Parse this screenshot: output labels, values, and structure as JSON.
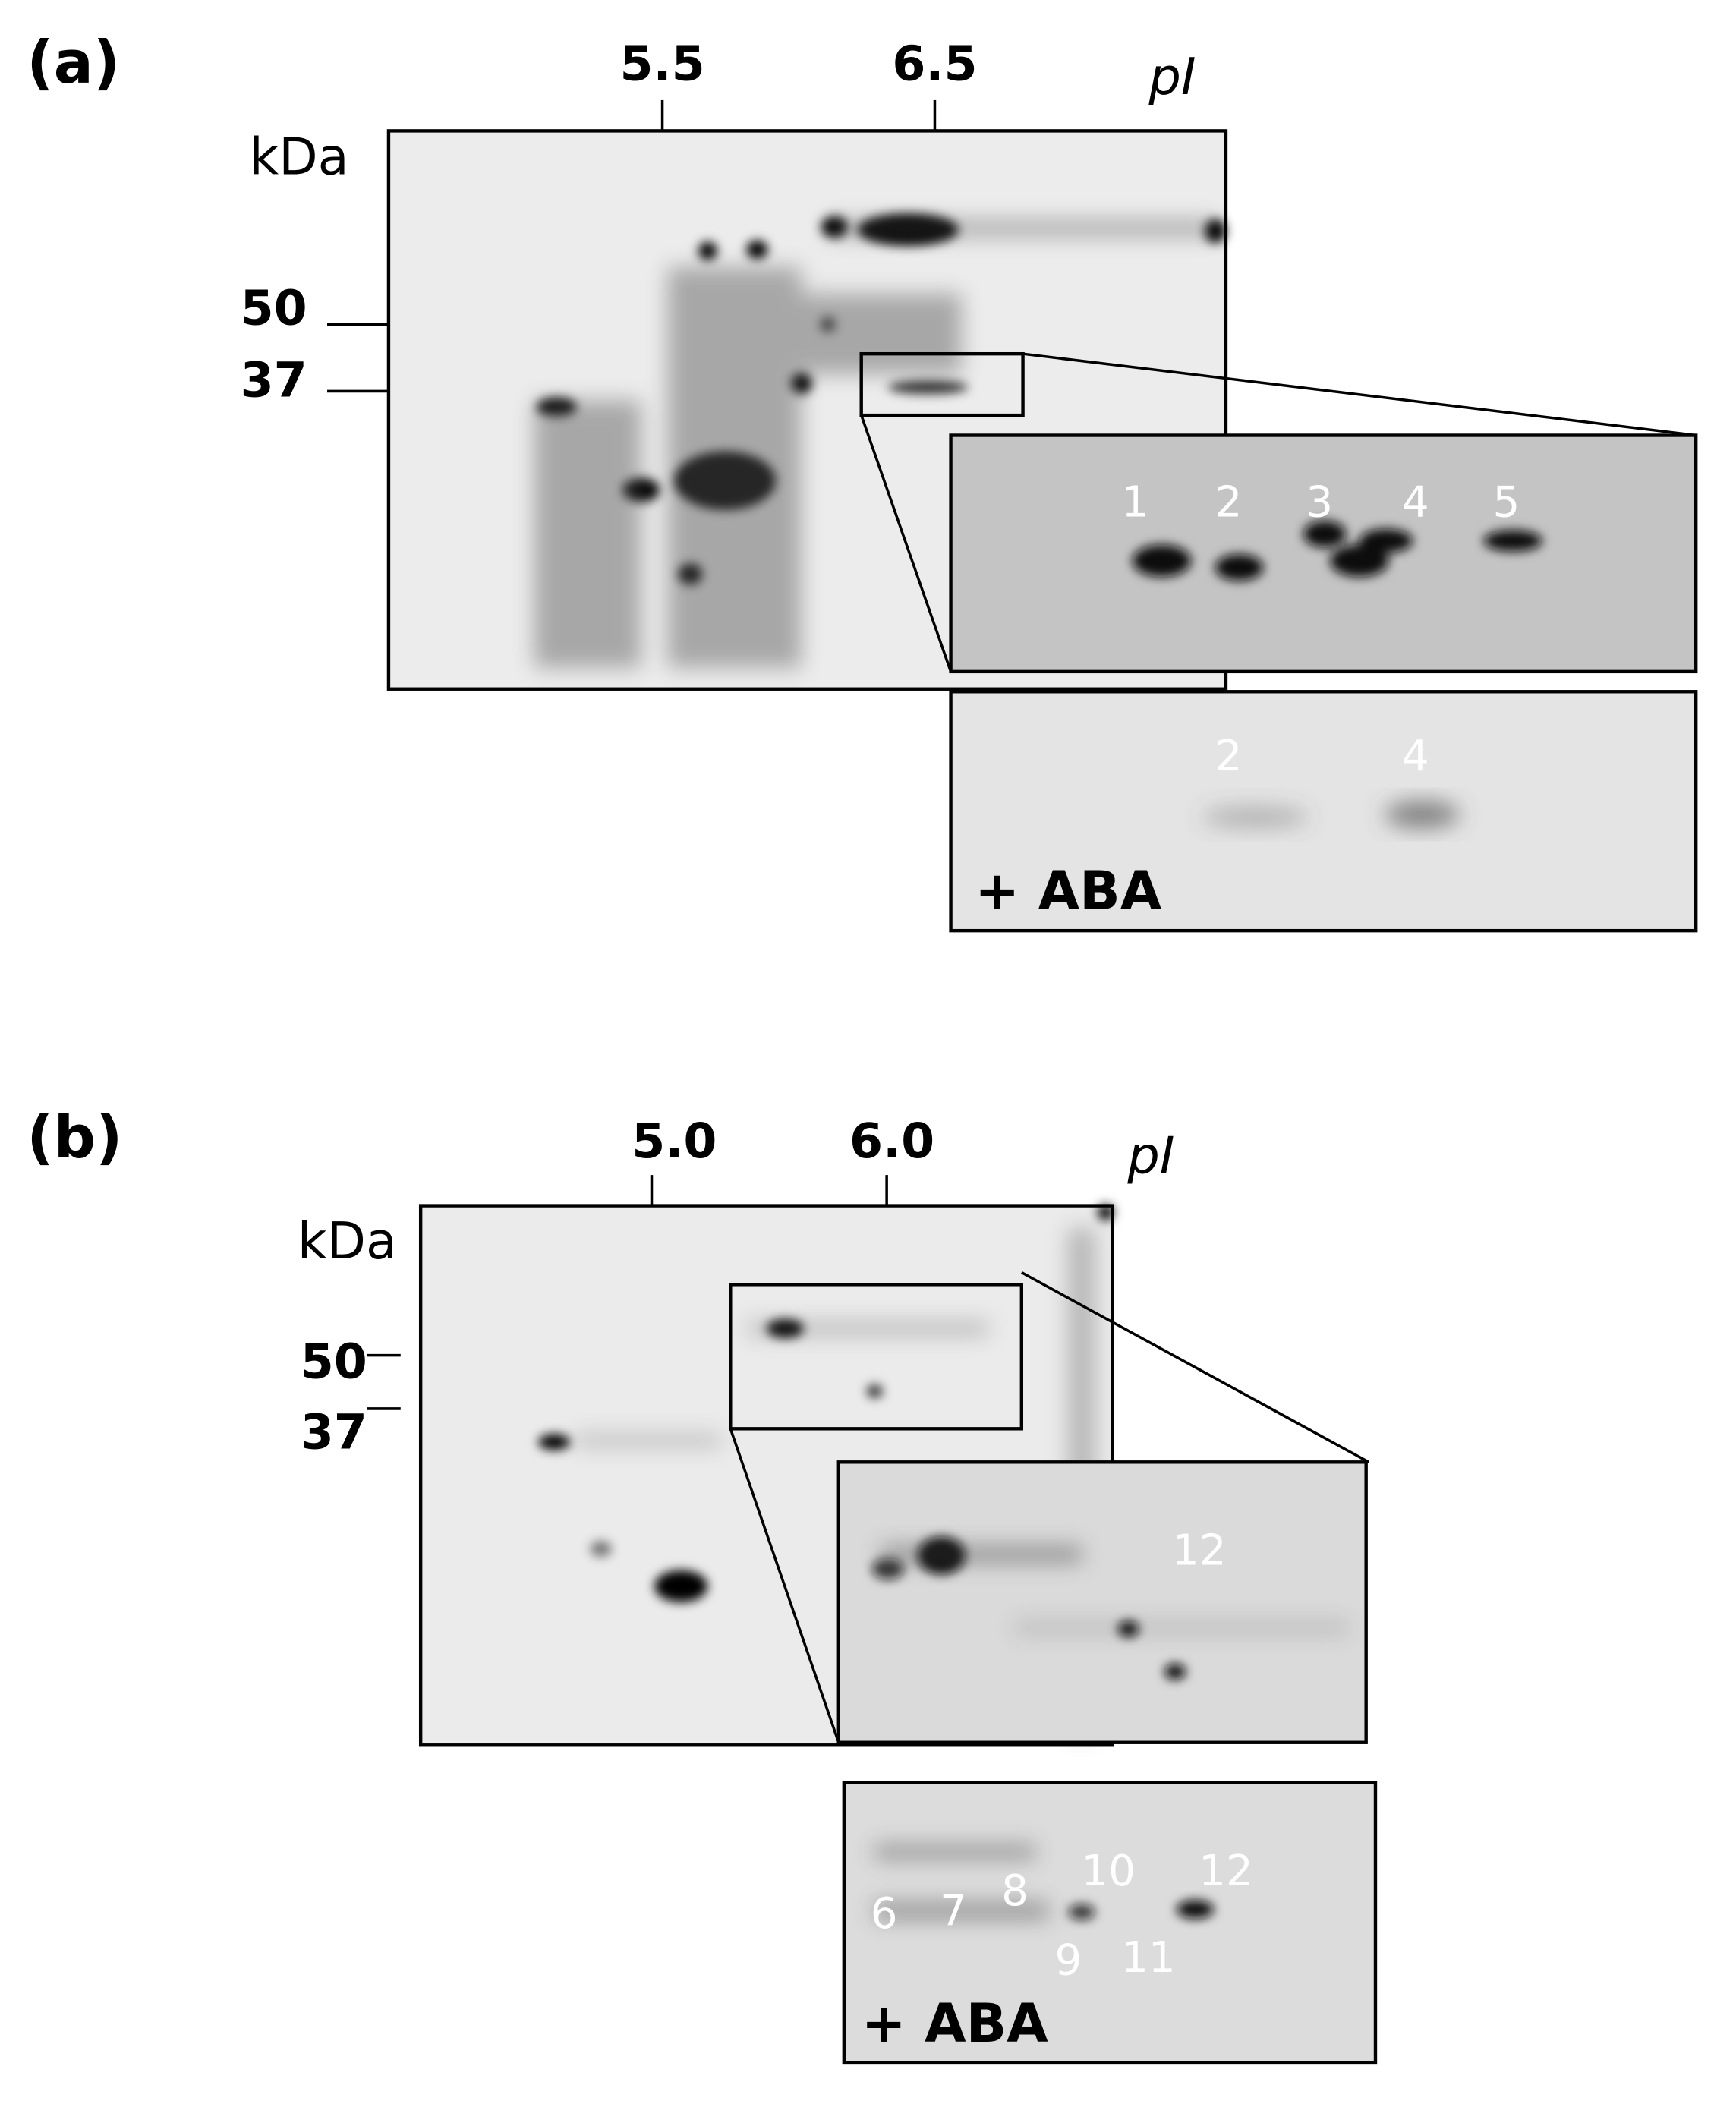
{
  "panel_a": {
    "label": "(a)",
    "pi_ticks": [
      "5.5",
      "6.5"
    ],
    "pi_label": "pI",
    "kda_label": "kDa",
    "mw_ticks": [
      "50",
      "37"
    ],
    "inset_spots": [
      "1",
      "2",
      "3",
      "4",
      "5"
    ],
    "aba_inset_spots": [
      "2",
      "4"
    ],
    "aba_label": "+ ABA"
  },
  "panel_b": {
    "label": "(b)",
    "pi_ticks": [
      "5.0",
      "6.0"
    ],
    "pi_label": "pI",
    "kda_label": "kDa",
    "mw_ticks": [
      "50",
      "37"
    ],
    "inset_spots": [
      "12"
    ],
    "aba_inset_spots": [
      "6",
      "7",
      "8",
      "9",
      "10",
      "11",
      "12"
    ],
    "aba_label": "+ ABA"
  }
}
